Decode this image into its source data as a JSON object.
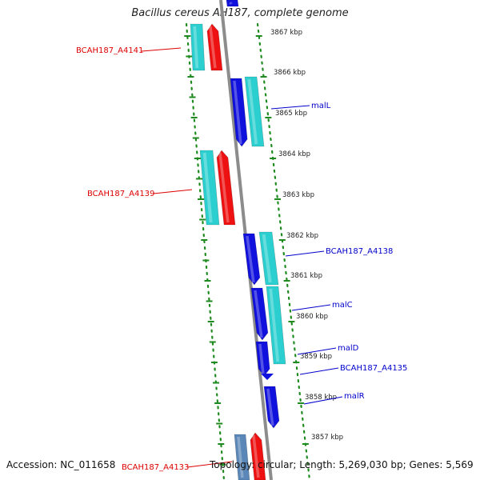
{
  "title": "Bacillus cereus AH187, complete genome",
  "footer": {
    "accession": "Accession: NC_011658",
    "summary": "Topology: circular; Length: 5,269,030 bp; Genes: 5,569"
  },
  "colors": {
    "background": "#ffffff",
    "backbone": "#8c8c8c",
    "scale_dots": "#1f8a1f",
    "gene_cyan": "#2ccfcf",
    "gene_red": "#ee1111",
    "gene_blue": "#1111dd",
    "gene_steelblue": "#5a87b8",
    "label_red": "#dd0000",
    "label_blue": "#0000cc",
    "kbp_text": "#222222"
  },
  "kbp_ticks": [
    "3867 kbp",
    "3866 kbp",
    "3865 kbp",
    "3864 kbp",
    "3863 kbp",
    "3862 kbp",
    "3861 kbp",
    "3860 kbp",
    "3859 kbp",
    "3858 kbp",
    "3857 kbp"
  ],
  "gene_labels": [
    {
      "text": "BCAH187_A4141",
      "color": "red"
    },
    {
      "text": "malL",
      "color": "blue"
    },
    {
      "text": "BCAH187_A4139",
      "color": "red"
    },
    {
      "text": "BCAH187_A4138",
      "color": "blue"
    },
    {
      "text": "malC",
      "color": "blue"
    },
    {
      "text": "malD",
      "color": "blue"
    },
    {
      "text": "BCAH187_A4135",
      "color": "blue"
    },
    {
      "text": "malR",
      "color": "blue"
    },
    {
      "text": "BCAH187_A4133",
      "color": "red"
    }
  ]
}
